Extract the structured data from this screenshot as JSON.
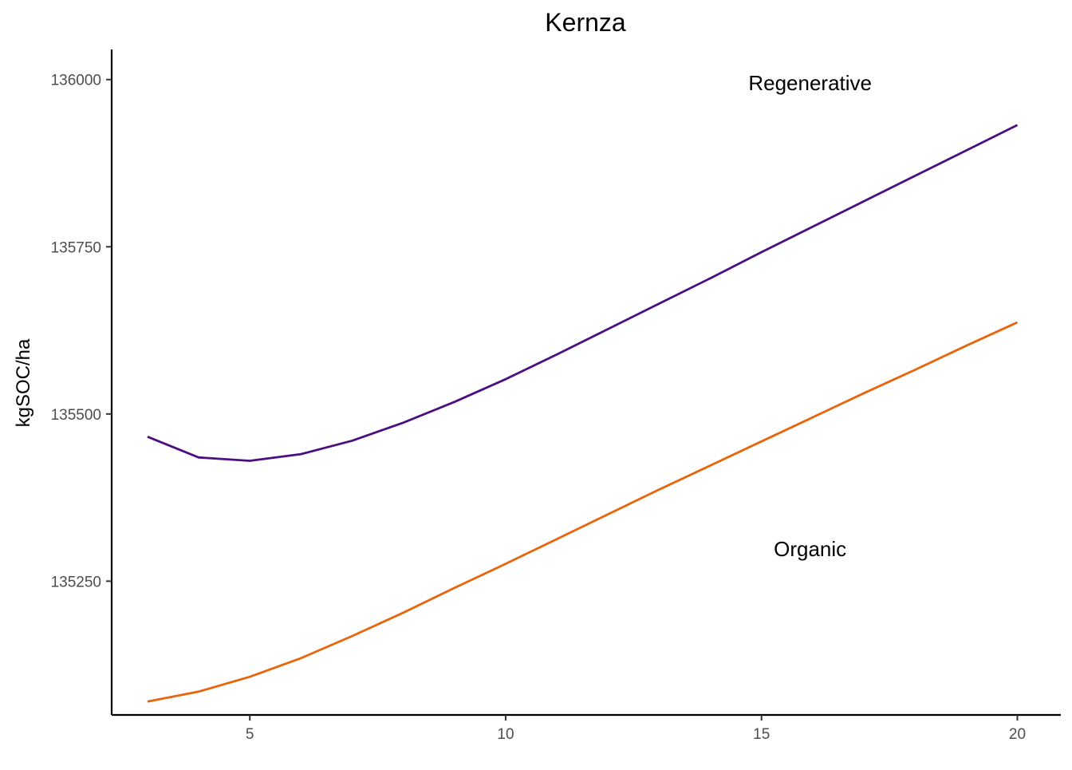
{
  "chart_data": {
    "type": "line",
    "title": "Kernza",
    "xlabel": "",
    "ylabel": "kgSOC/ha",
    "xlim": [
      2.3,
      20.85
    ],
    "ylim": [
      135050,
      136045
    ],
    "xticks": [
      5,
      10,
      15,
      20
    ],
    "xtick_labels": [
      "5",
      "10",
      "15",
      "20"
    ],
    "yticks": [
      135250,
      135500,
      135750,
      136000
    ],
    "ytick_labels": [
      "135250",
      "135500",
      "135750",
      "136000"
    ],
    "grid": false,
    "legend": "none",
    "x": [
      3,
      4,
      5,
      6,
      7,
      8,
      9,
      10,
      11,
      12,
      13,
      14,
      15,
      16,
      17,
      18,
      19,
      20
    ],
    "series": [
      {
        "name": "Regenerative",
        "color": "#4b0f80",
        "values": [
          135466,
          135435,
          135430,
          135440,
          135460,
          135487,
          135518,
          135552,
          135589,
          135627,
          135665,
          135703,
          135742,
          135780,
          135818,
          135856,
          135894,
          135932
        ]
      },
      {
        "name": "Organic",
        "color": "#e8650a",
        "values": [
          135070,
          135085,
          135107,
          135135,
          135168,
          135203,
          135240,
          135276,
          135313,
          135350,
          135387,
          135423,
          135459,
          135495,
          135531,
          135566,
          135602,
          135637
        ]
      }
    ],
    "annotations": [
      {
        "text": "Regenerative",
        "x": 15.95,
        "y": 135995
      },
      {
        "text": "Organic",
        "x": 15.95,
        "y": 135298
      }
    ]
  }
}
